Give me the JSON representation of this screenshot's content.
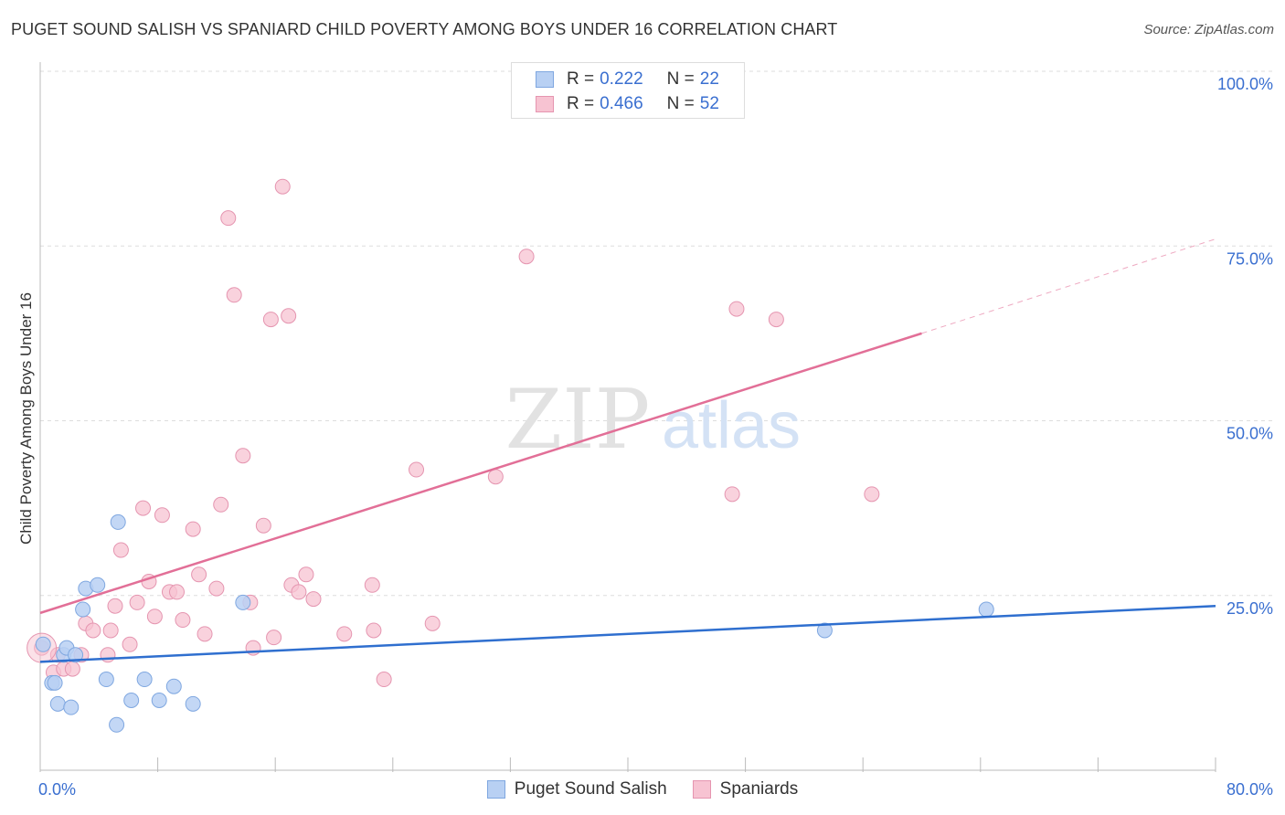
{
  "title": "PUGET SOUND SALISH VS SPANIARD CHILD POVERTY AMONG BOYS UNDER 16 CORRELATION CHART",
  "source": "Source: ZipAtlas.com",
  "colors": {
    "blue_fill": "#b8d0f3",
    "blue_stroke": "#7fa7e0",
    "blue_line": "#2f6fcf",
    "pink_fill": "#f7c3d2",
    "pink_stroke": "#e595b0",
    "pink_line": "#e26f97",
    "value_text": "#3a6fd0",
    "grid": "#dddddd"
  },
  "legend": {
    "rows": [
      {
        "r_label": "R =",
        "r_value": "0.222",
        "n_label": "N =",
        "n_value": "22"
      },
      {
        "r_label": "R =",
        "r_value": "0.466",
        "n_label": "N =",
        "n_value": "52"
      }
    ],
    "series_names": [
      "Puget Sound Salish",
      "Spaniards"
    ]
  },
  "watermark": {
    "zip": "ZIP",
    "atlas": "atlas"
  },
  "chart_data": {
    "type": "scatter",
    "title": "PUGET SOUND SALISH VS SPANIARD CHILD POVERTY AMONG BOYS UNDER 16 CORRELATION CHART",
    "xlabel": "",
    "ylabel": "Child Poverty Among Boys Under 16",
    "xlim": [
      0,
      80
    ],
    "ylim": [
      0,
      100
    ],
    "x_tick_labels": [
      "0.0%",
      "80.0%"
    ],
    "y_ticks": [
      25,
      50,
      75,
      100
    ],
    "y_tick_labels": [
      "25.0%",
      "50.0%",
      "75.0%",
      "100.0%"
    ],
    "grid": true,
    "series": [
      {
        "name": "Puget Sound Salish",
        "r": 0.222,
        "n": 22,
        "points": [
          [
            0.2,
            18.0
          ],
          [
            0.8,
            12.5
          ],
          [
            1.0,
            12.5
          ],
          [
            1.2,
            9.5
          ],
          [
            1.6,
            16.5
          ],
          [
            1.8,
            17.5
          ],
          [
            2.1,
            9.0
          ],
          [
            2.4,
            16.5
          ],
          [
            2.9,
            23.0
          ],
          [
            3.1,
            26.0
          ],
          [
            3.9,
            26.5
          ],
          [
            4.5,
            13.0
          ],
          [
            5.2,
            6.5
          ],
          [
            5.3,
            35.5
          ],
          [
            6.2,
            10.0
          ],
          [
            7.1,
            13.0
          ],
          [
            8.1,
            10.0
          ],
          [
            9.1,
            12.0
          ],
          [
            10.4,
            9.5
          ],
          [
            13.8,
            24.0
          ],
          [
            53.4,
            20.0
          ],
          [
            64.4,
            23.0
          ]
        ],
        "trend": {
          "x0": 0,
          "y0": 15.5,
          "x1": 80,
          "y1": 23.5
        }
      },
      {
        "name": "Spaniards",
        "r": 0.466,
        "n": 52,
        "points": [
          [
            0.1,
            17.5
          ],
          [
            0.9,
            14.0
          ],
          [
            1.2,
            16.5
          ],
          [
            1.6,
            14.5
          ],
          [
            2.2,
            14.5
          ],
          [
            2.8,
            16.5
          ],
          [
            3.1,
            21.0
          ],
          [
            3.6,
            20.0
          ],
          [
            4.6,
            16.5
          ],
          [
            4.8,
            20.0
          ],
          [
            5.1,
            23.5
          ],
          [
            5.5,
            31.5
          ],
          [
            6.1,
            18.0
          ],
          [
            6.6,
            24.0
          ],
          [
            7.0,
            37.5
          ],
          [
            7.4,
            27.0
          ],
          [
            7.8,
            22.0
          ],
          [
            8.3,
            36.5
          ],
          [
            8.8,
            25.5
          ],
          [
            9.3,
            25.5
          ],
          [
            9.7,
            21.5
          ],
          [
            10.4,
            34.5
          ],
          [
            10.8,
            28.0
          ],
          [
            11.2,
            19.5
          ],
          [
            12.0,
            26.0
          ],
          [
            12.3,
            38.0
          ],
          [
            12.8,
            79.0
          ],
          [
            13.2,
            68.0
          ],
          [
            13.8,
            45.0
          ],
          [
            14.3,
            24.0
          ],
          [
            14.5,
            17.5
          ],
          [
            15.2,
            35.0
          ],
          [
            15.7,
            64.5
          ],
          [
            15.9,
            19.0
          ],
          [
            16.5,
            83.5
          ],
          [
            16.9,
            65.0
          ],
          [
            17.1,
            26.5
          ],
          [
            17.6,
            25.5
          ],
          [
            18.1,
            28.0
          ],
          [
            18.6,
            24.5
          ],
          [
            20.7,
            19.5
          ],
          [
            22.6,
            26.5
          ],
          [
            22.7,
            20.0
          ],
          [
            23.4,
            13.0
          ],
          [
            25.6,
            43.0
          ],
          [
            26.7,
            21.0
          ],
          [
            31.0,
            42.0
          ],
          [
            33.1,
            73.5
          ],
          [
            47.1,
            39.5
          ],
          [
            47.4,
            66.0
          ],
          [
            50.1,
            64.5
          ],
          [
            56.6,
            39.5
          ]
        ],
        "trend": {
          "x0": 0,
          "y0": 22.5,
          "x1": 60,
          "y1": 62.5,
          "dashed_to_x": 80,
          "dashed_to_y": 76.0
        }
      }
    ]
  }
}
